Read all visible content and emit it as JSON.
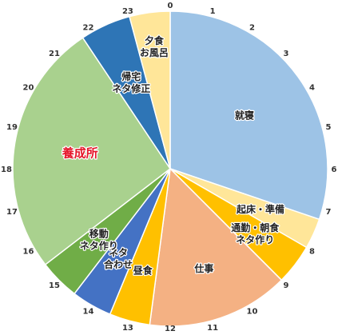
{
  "chart_data": {
    "type": "pie",
    "title": "",
    "unit": "hours",
    "start_angle_hour": 0,
    "direction": "clockwise",
    "hour_ticks": [
      "0",
      "1",
      "2",
      "3",
      "4",
      "5",
      "6",
      "7",
      "8",
      "9",
      "10",
      "11",
      "12",
      "13",
      "14",
      "15",
      "16",
      "17",
      "18",
      "19",
      "20",
      "21",
      "22",
      "23"
    ],
    "slices": [
      {
        "label_lines": [
          "就寝"
        ],
        "start": 0,
        "end": 7.25,
        "value": 7.25,
        "color": "#9dc3e6"
      },
      {
        "label_lines": [
          "起床・準備"
        ],
        "start": 7.25,
        "end": 8.0,
        "value": 0.75,
        "color": "#ffe699"
      },
      {
        "label_lines": [
          "通勤・朝食",
          "ネタ作り"
        ],
        "start": 8.0,
        "end": 9.0,
        "value": 1.0,
        "color": "#ffc000"
      },
      {
        "label_lines": [
          "仕事"
        ],
        "start": 9.0,
        "end": 12.5,
        "value": 3.5,
        "color": "#f4b183"
      },
      {
        "label_lines": [
          "昼食"
        ],
        "start": 12.5,
        "end": 13.5,
        "value": 1.0,
        "color": "#ffc000"
      },
      {
        "label_lines": [
          "ネタ",
          "合わせ"
        ],
        "start": 13.5,
        "end": 14.5,
        "value": 1.0,
        "color": "#4472c4"
      },
      {
        "label_lines": [
          "移動",
          "ネタ作り"
        ],
        "start": 14.5,
        "end": 15.5,
        "value": 1.0,
        "color": "#70ad47"
      },
      {
        "label_lines": [
          "養成所"
        ],
        "start": 15.5,
        "end": 21.75,
        "value": 6.25,
        "color": "#a9d18e",
        "highlight": true
      },
      {
        "label_lines": [
          "帰宅",
          "ネタ修正"
        ],
        "start": 21.75,
        "end": 23.0,
        "value": 1.25,
        "color": "#2e75b6"
      },
      {
        "label_lines": [
          "夕食",
          "お風呂"
        ],
        "start": 23.0,
        "end": 24.0,
        "value": 1.0,
        "color": "#ffe699"
      }
    ]
  }
}
